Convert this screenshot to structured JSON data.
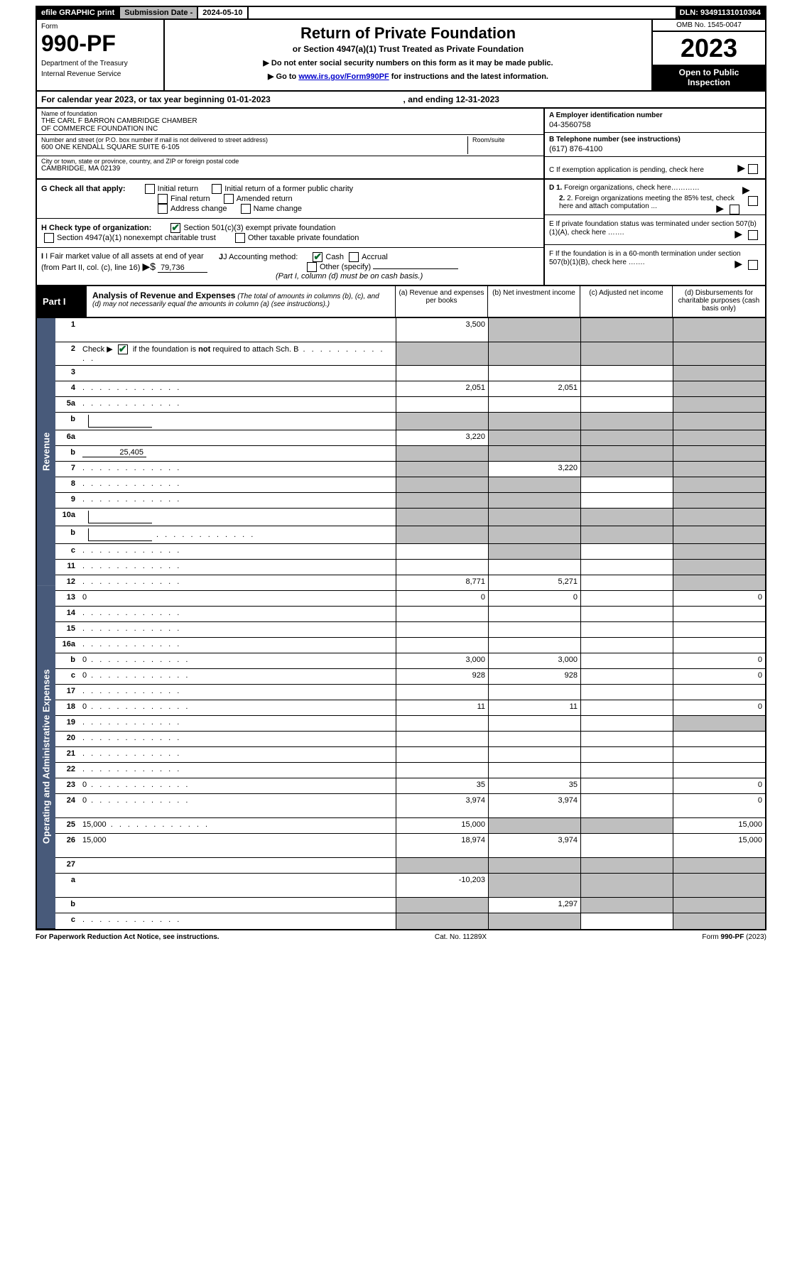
{
  "topbar": {
    "efile": "efile GRAPHIC print",
    "subLabel": "Submission Date - ",
    "subDate": "2024-05-10",
    "dln": "DLN: 93491131010364"
  },
  "header": {
    "formWord": "Form",
    "formNum": "990-PF",
    "dept1": "Department of the Treasury",
    "dept2": "Internal Revenue Service",
    "title": "Return of Private Foundation",
    "subtitle": "or Section 4947(a)(1) Trust Treated as Private Foundation",
    "instr1": "▶ Do not enter social security numbers on this form as it may be made public.",
    "instr2a": "▶ Go to ",
    "instr2link": "www.irs.gov/Form990PF",
    "instr2b": " for instructions and the latest information.",
    "omb": "OMB No. 1545-0047",
    "year": "2023",
    "open1": "Open to Public",
    "open2": "Inspection"
  },
  "cal": {
    "prefix": "For calendar year 2023, or tax year beginning ",
    "begin": "01-01-2023",
    "mid": ", and ending ",
    "end": "12-31-2023"
  },
  "entity": {
    "nameLbl": "Name of foundation",
    "name1": "THE CARL F BARRON CAMBRIDGE CHAMBER",
    "name2": "OF COMMERCE FOUNDATION INC",
    "addrLbl": "Number and street (or P.O. box number if mail is not delivered to street address)",
    "addr": "600 ONE KENDALL SQUARE SUITE 6-105",
    "roomLbl": "Room/suite",
    "cityLbl": "City or town, state or province, country, and ZIP or foreign postal code",
    "city": "CAMBRIDGE, MA  02139",
    "einLbl": "A Employer identification number",
    "ein": "04-3560758",
    "telLbl": "B Telephone number (see instructions)",
    "tel": "(617) 876-4100",
    "pendLbl": "C If exemption application is pending, check here"
  },
  "G": {
    "label": "G Check all that apply:",
    "opts": [
      "Initial return",
      "Initial return of a former public charity",
      "Final return",
      "Amended return",
      "Address change",
      "Name change"
    ]
  },
  "H": {
    "label": "H Check type of organization:",
    "opt1": "Section 501(c)(3) exempt private foundation",
    "opt2": "Section 4947(a)(1) nonexempt charitable trust",
    "opt3": "Other taxable private foundation"
  },
  "I": {
    "label1": "I Fair market value of all assets at end of year (from Part II, col. (c), line 16)",
    "arrow": "▶$",
    "val": "79,736",
    "jlabel": "J Accounting method:",
    "jopts": [
      "Cash",
      "Accrual"
    ],
    "jother": "Other (specify)",
    "jnote": "(Part I, column (d) must be on cash basis.)"
  },
  "D": {
    "d1": "D 1. Foreign organizations, check here…………",
    "d2": "2. Foreign organizations meeting the 85% test, check here and attach computation ..."
  },
  "E": {
    "text": "E  If private foundation status was terminated under section 507(b)(1)(A), check here ……."
  },
  "F": {
    "text": "F  If the foundation is in a 60-month termination under section 507(b)(1)(B), check here ……."
  },
  "part1": {
    "label": "Part I",
    "title": "Analysis of Revenue and Expenses",
    "titleNote": " (The total of amounts in columns (b), (c), and (d) may not necessarily equal the amounts in column (a) (see instructions).)",
    "colA": "(a)   Revenue and expenses per books",
    "colB": "(b)   Net investment income",
    "colC": "(c)   Adjusted net income",
    "colD": "(d)  Disbursements for charitable purposes (cash basis only)"
  },
  "vlabels": {
    "rev": "Revenue",
    "exp": "Operating and Administrative Expenses"
  },
  "rows": [
    {
      "n": "1",
      "d": "",
      "a": "3,500",
      "b": "",
      "c": "",
      "shadeBCD": true,
      "tall": true
    },
    {
      "n": "2",
      "d": "Check ▶ __CHECK__ if the foundation is <b>not</b> required to attach Sch. B",
      "noCells": true,
      "dots": true
    },
    {
      "n": "3",
      "d": "",
      "a": "",
      "b": "",
      "c": "",
      "shadeD": true
    },
    {
      "n": "4",
      "d": "",
      "a": "2,051",
      "b": "2,051",
      "c": "",
      "shadeD": true,
      "dots": true
    },
    {
      "n": "5a",
      "d": "",
      "a": "",
      "b": "",
      "c": "",
      "shadeD": true,
      "dots": true
    },
    {
      "n": "b",
      "d": "",
      "a": "",
      "b": "",
      "c": "",
      "shadeAll": true,
      "inlineBox": true
    },
    {
      "n": "6a",
      "d": "",
      "a": "3,220",
      "b": "",
      "c": "",
      "shadeBCD": true
    },
    {
      "n": "b",
      "d": "",
      "inlineVal": "25,405",
      "a": "",
      "b": "",
      "c": "",
      "shadeAll": true
    },
    {
      "n": "7",
      "d": "",
      "a": "",
      "b": "3,220",
      "c": "",
      "shadeA": true,
      "shadeCD": true,
      "dots": true
    },
    {
      "n": "8",
      "d": "",
      "a": "",
      "b": "",
      "c": "",
      "shadeAB": true,
      "shadeD": true,
      "dots": true
    },
    {
      "n": "9",
      "d": "",
      "a": "",
      "b": "",
      "c": "",
      "shadeAB": true,
      "shadeD": true,
      "dots": true
    },
    {
      "n": "10a",
      "d": "",
      "a": "",
      "b": "",
      "c": "",
      "shadeAll": true,
      "inlineBox": true
    },
    {
      "n": "b",
      "d": "",
      "a": "",
      "b": "",
      "c": "",
      "shadeAll": true,
      "inlineBox": true,
      "dots": true
    },
    {
      "n": "c",
      "d": "",
      "a": "",
      "b": "",
      "c": "",
      "shadeBD": true,
      "dots": true
    },
    {
      "n": "11",
      "d": "",
      "a": "",
      "b": "",
      "c": "",
      "shadeD": true,
      "dots": true
    },
    {
      "n": "12",
      "d": "",
      "a": "8,771",
      "b": "5,271",
      "c": "",
      "shadeD": true,
      "dots": true
    },
    {
      "n": "13",
      "d": "0",
      "a": "0",
      "b": "0",
      "c": ""
    },
    {
      "n": "14",
      "d": "",
      "a": "",
      "b": "",
      "c": "",
      "dots": true
    },
    {
      "n": "15",
      "d": "",
      "a": "",
      "b": "",
      "c": "",
      "dots": true
    },
    {
      "n": "16a",
      "d": "",
      "a": "",
      "b": "",
      "c": "",
      "dots": true
    },
    {
      "n": "b",
      "d": "0",
      "a": "3,000",
      "b": "3,000",
      "c": "",
      "dots": true
    },
    {
      "n": "c",
      "d": "0",
      "a": "928",
      "b": "928",
      "c": "",
      "dots": true
    },
    {
      "n": "17",
      "d": "",
      "a": "",
      "b": "",
      "c": "",
      "dots": true
    },
    {
      "n": "18",
      "d": "0",
      "a": "11",
      "b": "11",
      "c": "",
      "dots": true
    },
    {
      "n": "19",
      "d": "",
      "a": "",
      "b": "",
      "c": "",
      "shadeD": true,
      "dots": true
    },
    {
      "n": "20",
      "d": "",
      "a": "",
      "b": "",
      "c": "",
      "dots": true
    },
    {
      "n": "21",
      "d": "",
      "a": "",
      "b": "",
      "c": "",
      "dots": true
    },
    {
      "n": "22",
      "d": "",
      "a": "",
      "b": "",
      "c": "",
      "dots": true
    },
    {
      "n": "23",
      "d": "0",
      "a": "35",
      "b": "35",
      "c": "",
      "dots": true
    },
    {
      "n": "24",
      "d": "0",
      "a": "3,974",
      "b": "3,974",
      "c": "",
      "dots": true,
      "tall": true
    },
    {
      "n": "25",
      "d": "15,000",
      "a": "15,000",
      "b": "",
      "c": "",
      "shadeBC": true,
      "dots": true
    },
    {
      "n": "26",
      "d": "15,000",
      "a": "18,974",
      "b": "3,974",
      "c": "",
      "tall": true
    },
    {
      "n": "27",
      "d": "",
      "a": "",
      "b": "",
      "c": "",
      "shadeAll": true
    },
    {
      "n": "a",
      "d": "",
      "a": "-10,203",
      "b": "",
      "c": "",
      "shadeBCD": true,
      "tall": true
    },
    {
      "n": "b",
      "d": "",
      "a": "",
      "b": "1,297",
      "c": "",
      "shadeA": true,
      "shadeCD": true
    },
    {
      "n": "c",
      "d": "",
      "a": "",
      "b": "",
      "c": "",
      "shadeAB": true,
      "shadeD": true,
      "dots": true
    }
  ],
  "footer": {
    "left": "For Paperwork Reduction Act Notice, see instructions.",
    "mid": "Cat. No. 11289X",
    "right": "Form 990-PF (2023)"
  }
}
